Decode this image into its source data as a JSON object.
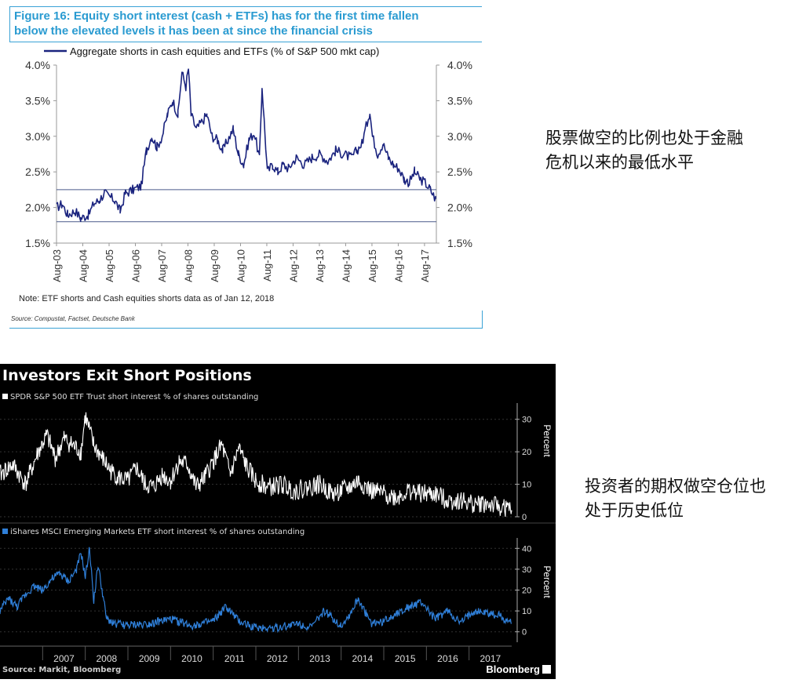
{
  "top_figure": {
    "title_line1": "Figure 16: Equity short interest (cash + ETFs) has for the first time fallen",
    "title_line2": "below the elevated levels it has been at since the financial crisis",
    "note": "Note: ETF shorts and Cash equities shorts data as of Jan 12, 2018",
    "source": "Source: Compustat, Factset, Deutsche Bank",
    "line_color": "#1a237e",
    "title_color": "#2a9bd1"
  },
  "annotations": {
    "top_line1": "股票做空的比例也处于金融",
    "top_line2": "危机以来的最低水平",
    "bottom_line1": "投资者的期权做空仓位也",
    "bottom_line2": "处于历史低位"
  },
  "bottom_figure": {
    "title": "Investors Exit Short Positions",
    "subtitle_1": "SPDR S&P 500 ETF Trust short interest % of shares outstanding",
    "subtitle_2": "iShares MSCI Emerging Markets ETF short interest % of shares outstanding",
    "source": "Source: Markit, Bloomberg",
    "brand": "Bloomberg",
    "series1_color": "#ffffff",
    "series2_color": "#2f7fd8"
  },
  "chart_data": [
    {
      "type": "line",
      "legend": "Aggregate shorts in cash equities and ETFs (% of S&P 500 mkt cap)",
      "y_tick_labels": [
        "1.5%",
        "2.0%",
        "2.5%",
        "3.0%",
        "3.5%",
        "4.0%"
      ],
      "y_ticks": [
        1.5,
        2.0,
        2.5,
        3.0,
        3.5,
        4.0
      ],
      "ylim": [
        1.5,
        4.0
      ],
      "xlim": [
        2003.58,
        2018.03
      ],
      "x_tick_labels": [
        "Aug-03",
        "Aug-04",
        "Aug-05",
        "Aug-06",
        "Aug-07",
        "Aug-08",
        "Aug-09",
        "Aug-10",
        "Aug-11",
        "Aug-12",
        "Aug-13",
        "Aug-14",
        "Aug-15",
        "Aug-16",
        "Aug-17"
      ],
      "x_ticks": [
        2003.58,
        2004.58,
        2005.58,
        2006.58,
        2007.58,
        2008.58,
        2009.58,
        2010.58,
        2011.58,
        2012.58,
        2013.58,
        2014.58,
        2015.58,
        2016.58,
        2017.58
      ],
      "reference_lines": [
        2.25,
        1.8
      ],
      "series": [
        {
          "name": "Aggregate shorts in cash equities and ETFs (% of S&P 500 mkt cap)",
          "x": [
            2003.58,
            2003.8,
            2004.0,
            2004.3,
            2004.5,
            2004.8,
            2005.0,
            2005.2,
            2005.4,
            2005.6,
            2005.8,
            2006.0,
            2006.2,
            2006.5,
            2006.8,
            2007.0,
            2007.2,
            2007.4,
            2007.6,
            2007.8,
            2008.0,
            2008.2,
            2008.35,
            2008.5,
            2008.6,
            2008.7,
            2008.9,
            2009.1,
            2009.3,
            2009.5,
            2009.7,
            2009.9,
            2010.1,
            2010.3,
            2010.5,
            2010.7,
            2010.9,
            2011.1,
            2011.3,
            2011.4,
            2011.5,
            2011.6,
            2011.8,
            2012.0,
            2012.2,
            2012.4,
            2012.7,
            2013.0,
            2013.3,
            2013.6,
            2013.9,
            2014.2,
            2014.5,
            2014.8,
            2015.0,
            2015.2,
            2015.4,
            2015.5,
            2015.6,
            2015.8,
            2016.0,
            2016.2,
            2016.4,
            2016.6,
            2016.8,
            2017.0,
            2017.2,
            2017.4,
            2017.6,
            2017.8,
            2018.0
          ],
          "y": [
            2.0,
            2.05,
            1.9,
            1.95,
            1.85,
            1.9,
            2.05,
            2.1,
            2.2,
            2.15,
            2.1,
            1.95,
            2.2,
            2.25,
            2.3,
            2.8,
            3.0,
            2.85,
            3.0,
            3.3,
            3.5,
            3.3,
            3.9,
            3.7,
            3.95,
            3.3,
            3.1,
            3.2,
            3.3,
            3.0,
            2.95,
            2.8,
            2.95,
            3.1,
            2.75,
            2.6,
            2.95,
            3.05,
            2.7,
            3.7,
            3.1,
            2.5,
            2.6,
            2.5,
            2.6,
            2.55,
            2.7,
            2.6,
            2.7,
            2.75,
            2.65,
            2.8,
            2.75,
            2.7,
            2.8,
            2.9,
            3.2,
            3.35,
            3.0,
            2.75,
            2.9,
            2.7,
            2.6,
            2.55,
            2.4,
            2.35,
            2.5,
            2.4,
            2.35,
            2.25,
            2.12
          ]
        }
      ]
    },
    {
      "type": "line",
      "xlim": [
        2006.0,
        2018.0
      ],
      "ylim": [
        0,
        35
      ],
      "y_ticks": [
        0,
        10,
        20,
        30
      ],
      "ylabel": "Percent",
      "series": [
        {
          "name": "SPDR S&P 500 ETF Trust short interest % of shares outstanding",
          "x": [
            2006.0,
            2006.3,
            2006.6,
            2006.9,
            2007.1,
            2007.3,
            2007.5,
            2007.7,
            2007.9,
            2008.0,
            2008.2,
            2008.4,
            2008.6,
            2008.8,
            2009.0,
            2009.2,
            2009.4,
            2009.6,
            2009.8,
            2010.0,
            2010.2,
            2010.4,
            2010.6,
            2010.8,
            2011.0,
            2011.2,
            2011.4,
            2011.6,
            2011.8,
            2012.0,
            2012.3,
            2012.6,
            2012.9,
            2013.2,
            2013.5,
            2013.8,
            2014.0,
            2014.2,
            2014.4,
            2014.7,
            2015.0,
            2015.3,
            2015.6,
            2015.9,
            2016.2,
            2016.5,
            2016.8,
            2017.1,
            2017.4,
            2017.7,
            2018.0
          ],
          "y": [
            13,
            16,
            10,
            20,
            25,
            18,
            24,
            22,
            20,
            31,
            22,
            18,
            14,
            12,
            11,
            15,
            10,
            9,
            13,
            11,
            17,
            16,
            9,
            12,
            17,
            22,
            13,
            21,
            15,
            11,
            9,
            10,
            8,
            9,
            10,
            7,
            8,
            9,
            11,
            8,
            7,
            6,
            8,
            7,
            7,
            5,
            5,
            4,
            4,
            3,
            2
          ]
        }
      ]
    },
    {
      "type": "line",
      "xlim": [
        2006.0,
        2018.0
      ],
      "ylim": [
        -5,
        45
      ],
      "y_ticks": [
        0,
        10,
        20,
        30,
        40
      ],
      "ylabel": "Percent",
      "x_tick_labels": [
        "2007",
        "2008",
        "2009",
        "2010",
        "2011",
        "2012",
        "2013",
        "2014",
        "2015",
        "2016",
        "2017"
      ],
      "x_ticks": [
        2007,
        2008,
        2009,
        2010,
        2011,
        2012,
        2013,
        2014,
        2015,
        2016,
        2017
      ],
      "series": [
        {
          "name": "iShares MSCI Emerging Markets ETF short interest % of shares outstanding",
          "x": [
            2006.0,
            2006.2,
            2006.4,
            2006.6,
            2006.8,
            2007.0,
            2007.2,
            2007.4,
            2007.6,
            2007.8,
            2007.9,
            2008.0,
            2008.1,
            2008.2,
            2008.3,
            2008.5,
            2008.7,
            2009.0,
            2009.5,
            2010.0,
            2010.5,
            2011.0,
            2011.3,
            2011.6,
            2012.0,
            2012.5,
            2013.0,
            2013.3,
            2013.6,
            2014.0,
            2014.2,
            2014.4,
            2014.7,
            2015.0,
            2015.3,
            2015.6,
            2015.9,
            2016.2,
            2016.5,
            2016.8,
            2017.1,
            2017.4,
            2017.7,
            2018.0
          ],
          "y": [
            10,
            16,
            12,
            18,
            22,
            20,
            25,
            28,
            24,
            30,
            38,
            26,
            40,
            15,
            32,
            6,
            4,
            3,
            4,
            6,
            3,
            5,
            12,
            5,
            2,
            2,
            4,
            2,
            10,
            3,
            8,
            16,
            4,
            5,
            9,
            12,
            14,
            6,
            10,
            4,
            10,
            9,
            8,
            4
          ]
        }
      ]
    }
  ]
}
